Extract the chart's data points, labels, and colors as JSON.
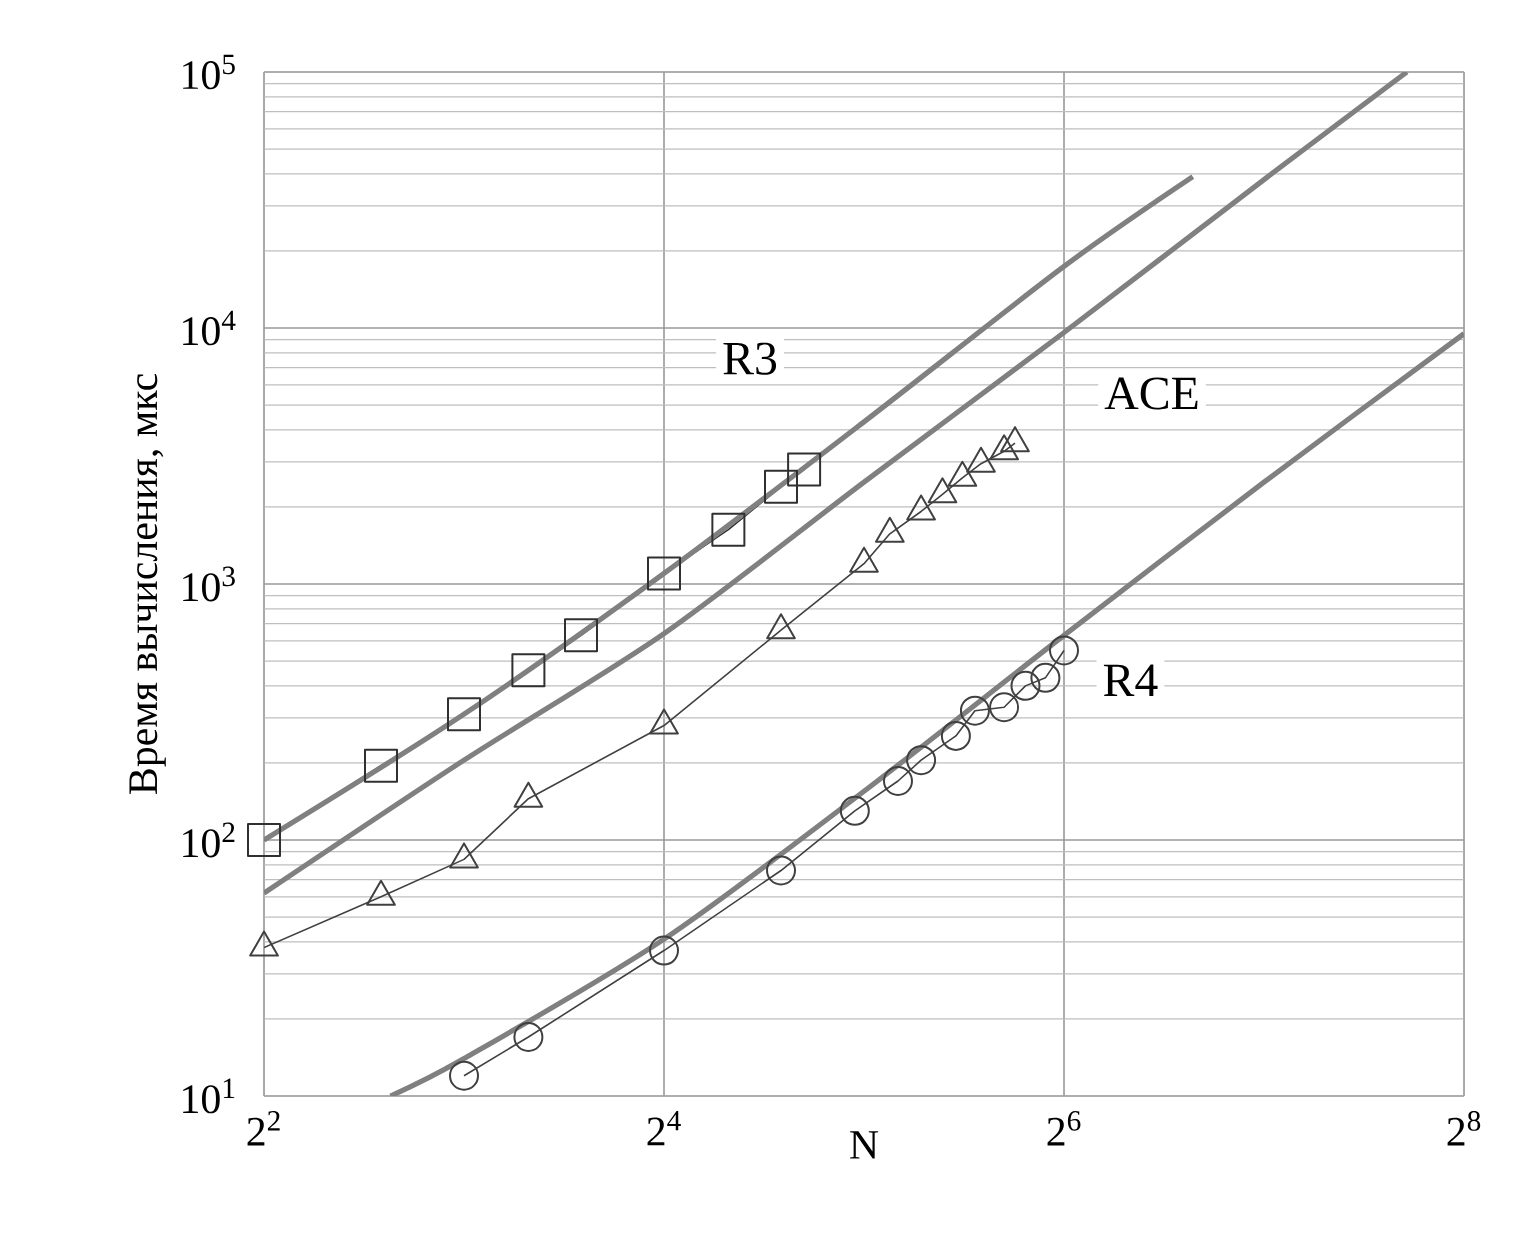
{
  "chart_data": {
    "type": "line",
    "xlabel": "N",
    "ylabel": "Время вычисления, мкс",
    "log": "xy",
    "grid": true,
    "xlim": [
      4,
      256
    ],
    "xticks": [
      {
        "value": 4,
        "label": "2$^{2}$"
      },
      {
        "value": 16,
        "label": "2$^{4}$"
      },
      {
        "value": 64,
        "label": "2$^{6}$"
      },
      {
        "value": 256,
        "label": "2$^{8}$"
      }
    ],
    "ylim": [
      10,
      100000
    ],
    "yticks": [
      {
        "value": 10,
        "label": "10$^{1}$"
      },
      {
        "value": 100,
        "label": "10$^{2}$"
      },
      {
        "value": 1000,
        "label": "10$^{3}$"
      },
      {
        "value": 10000,
        "label": "10$^{4}$"
      },
      {
        "value": 100000,
        "label": "10$^{5}$"
      }
    ],
    "series": [
      {
        "color": "#303030",
        "marker": "square",
        "x": [
          4,
          6,
          8,
          10,
          12,
          16,
          20,
          24,
          26
        ],
        "values": [
          100,
          195,
          310,
          460,
          630,
          1100,
          1630,
          2400,
          2800
        ]
      },
      {
        "color": "#808080",
        "marker": "none",
        "x": [
          4,
          8,
          16,
          32,
          64,
          100
        ],
        "values": [
          100,
          310,
          1100,
          4300,
          17400,
          39000
        ]
      },
      {
        "color": "#808080",
        "marker": "none",
        "x": [
          4,
          8,
          16,
          32,
          64,
          128,
          210
        ],
        "values": [
          62,
          205,
          640,
          2500,
          9600,
          38000,
          100000
        ]
      },
      {
        "color": "#404040",
        "marker": "triangle",
        "x": [
          4,
          6,
          8,
          10,
          16,
          24,
          32,
          35,
          39,
          42,
          45,
          48,
          52,
          54
        ],
        "values": [
          38,
          60,
          84,
          145,
          280,
          660,
          1200,
          1570,
          1920,
          2240,
          2600,
          2950,
          3300,
          3550
        ]
      },
      {
        "color": "#808080",
        "marker": "none",
        "x": [
          6.2,
          8,
          16,
          32,
          64,
          128,
          256
        ],
        "values": [
          10,
          14,
          41,
          155,
          630,
          2500,
          9500
        ]
      },
      {
        "color": "#404040",
        "marker": "circle",
        "x": [
          8,
          10,
          16,
          24,
          31,
          36,
          39,
          44,
          47,
          52,
          56,
          60,
          64
        ],
        "values": [
          12,
          17,
          37,
          76,
          130,
          170,
          205,
          255,
          320,
          330,
          400,
          430,
          550
        ]
      }
    ],
    "annotations": [
      "R3",
      "ACE",
      "R4"
    ]
  }
}
